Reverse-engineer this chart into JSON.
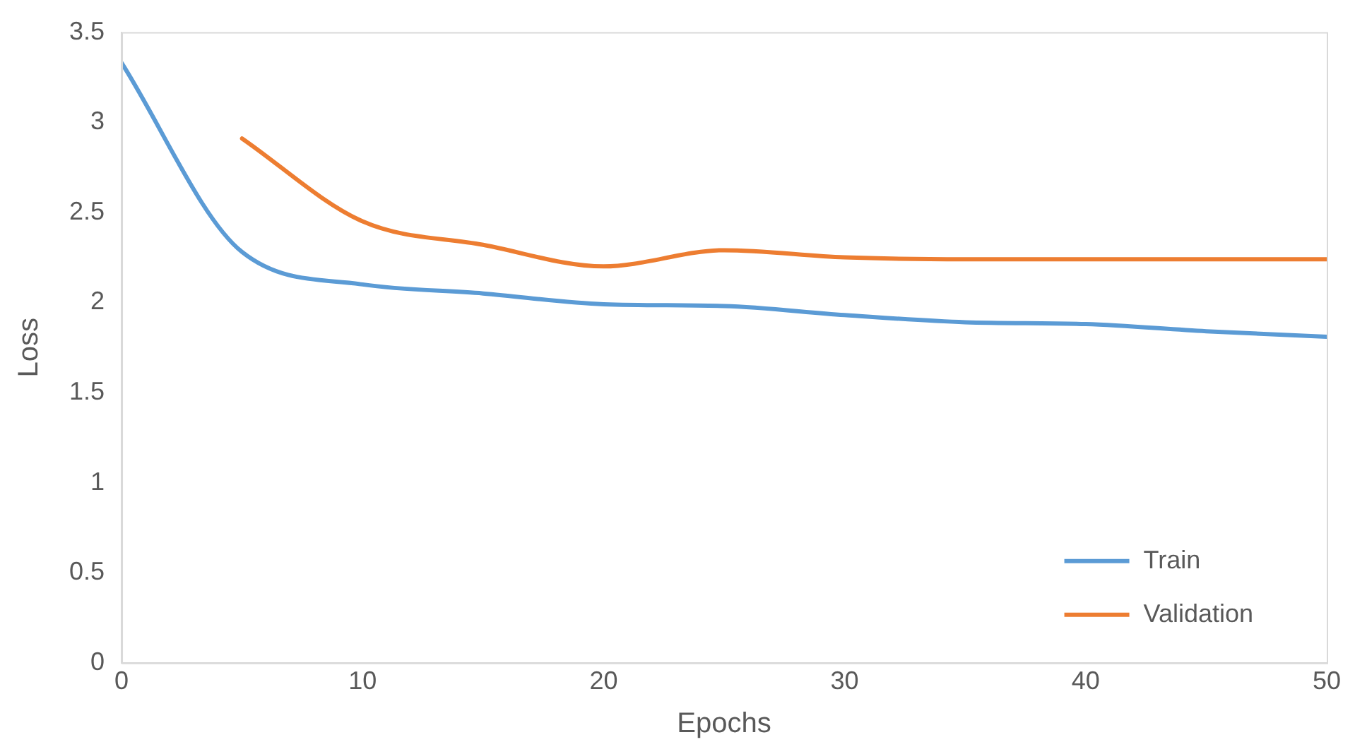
{
  "chart_data": {
    "type": "line",
    "xlabel": "Epochs",
    "ylabel": "Loss",
    "xlim": [
      0,
      50
    ],
    "xticks": [
      0,
      10,
      20,
      30,
      40,
      50
    ],
    "ylim": [
      0,
      3.5
    ],
    "yticks": [
      0,
      0.5,
      1,
      1.5,
      2,
      2.5,
      3,
      3.5
    ],
    "grid": false,
    "legend": "bottom right",
    "marker": "none",
    "line_style": "solid",
    "series": [
      {
        "name": "Train",
        "color": "#5b9bd5",
        "x": [
          0,
          5,
          10,
          15,
          20,
          25,
          30,
          35,
          40,
          45,
          50
        ],
        "values": [
          3.33,
          2.28,
          2.1,
          2.05,
          1.99,
          1.98,
          1.93,
          1.89,
          1.88,
          1.84,
          1.81
        ]
      },
      {
        "name": "Validation",
        "color": "#ed7d31",
        "x": [
          5,
          10,
          15,
          20,
          25,
          30,
          35,
          40,
          45,
          50
        ],
        "values": [
          2.91,
          2.45,
          2.32,
          2.2,
          2.29,
          2.25,
          2.24,
          2.24,
          2.24,
          2.24
        ]
      }
    ]
  }
}
